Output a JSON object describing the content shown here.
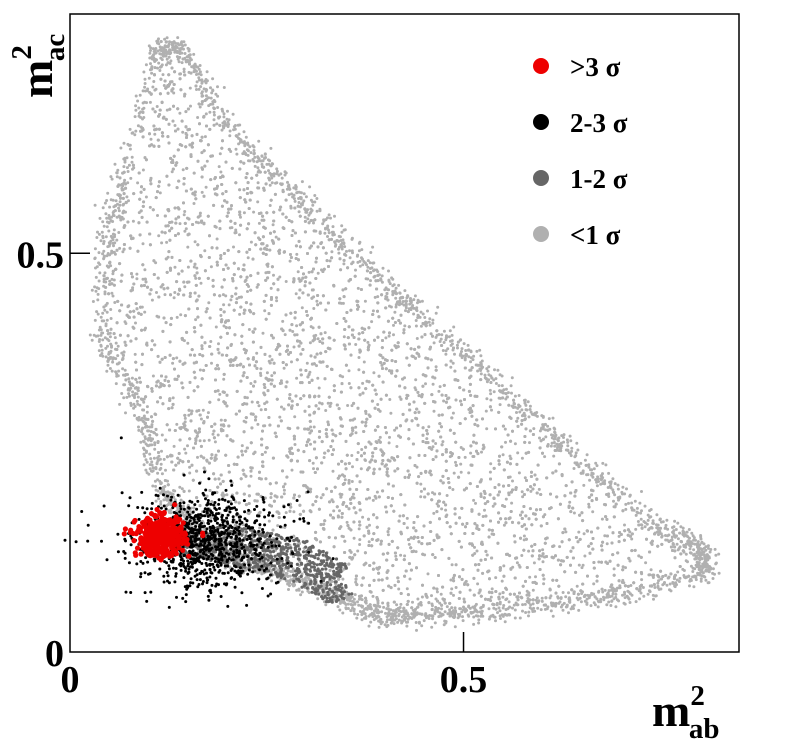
{
  "chart_data": {
    "type": "scatter",
    "title": "",
    "xlabel": {
      "base": "m",
      "sup": "2",
      "sub": "ab"
    },
    "ylabel": {
      "base": "m",
      "sup": "2",
      "sub": "ac"
    },
    "xlim": [
      0,
      0.85
    ],
    "ylim": [
      0,
      0.8
    ],
    "xticks": [
      {
        "value": 0,
        "label": "0"
      },
      {
        "value": 0.5,
        "label": "0.5"
      }
    ],
    "yticks": [
      {
        "value": 0,
        "label": "0"
      },
      {
        "value": 0.5,
        "label": "0.5"
      }
    ],
    "grid": false,
    "legend_position": "top-right",
    "series": [
      {
        "name": "<1 σ",
        "color": "#b0b0b0",
        "description": "Dalitz region boundary",
        "boundary": [
          [
            0.11,
            0.75
          ],
          [
            0.05,
            0.55
          ],
          [
            0.04,
            0.4
          ],
          [
            0.09,
            0.3
          ],
          [
            0.12,
            0.2
          ],
          [
            0.16,
            0.15
          ],
          [
            0.2,
            0.12
          ],
          [
            0.26,
            0.1
          ],
          [
            0.32,
            0.08
          ],
          [
            0.38,
            0.05
          ],
          [
            0.42,
            0.045
          ],
          [
            0.5,
            0.05
          ],
          [
            0.6,
            0.06
          ],
          [
            0.7,
            0.07
          ],
          [
            0.81,
            0.1
          ],
          [
            0.8,
            0.13
          ],
          [
            0.74,
            0.16
          ],
          [
            0.64,
            0.25
          ],
          [
            0.55,
            0.33
          ],
          [
            0.45,
            0.42
          ],
          [
            0.36,
            0.5
          ],
          [
            0.28,
            0.58
          ],
          [
            0.2,
            0.66
          ],
          [
            0.14,
            0.76
          ]
        ]
      },
      {
        "name": "1-2 σ",
        "color": "#666666",
        "region": [
          [
            0.12,
            0.14
          ],
          [
            0.2,
            0.16
          ],
          [
            0.3,
            0.14
          ],
          [
            0.35,
            0.11
          ],
          [
            0.36,
            0.07
          ],
          [
            0.33,
            0.06
          ],
          [
            0.28,
            0.09
          ],
          [
            0.2,
            0.11
          ],
          [
            0.14,
            0.12
          ]
        ]
      },
      {
        "name": "2-3 σ",
        "color": "#000000",
        "center": [
          0.17,
          0.14
        ],
        "spread": [
          0.06,
          0.03
        ]
      },
      {
        "name": ">3 σ",
        "color": "#ee0000",
        "center": [
          0.115,
          0.145
        ],
        "spread": [
          0.015,
          0.012
        ]
      }
    ]
  }
}
